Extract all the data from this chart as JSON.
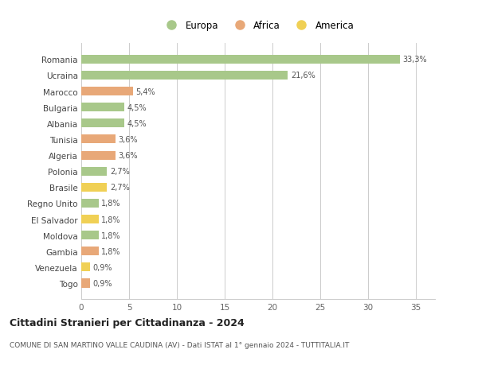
{
  "categories": [
    "Romania",
    "Ucraina",
    "Marocco",
    "Bulgaria",
    "Albania",
    "Tunisia",
    "Algeria",
    "Polonia",
    "Brasile",
    "Regno Unito",
    "El Salvador",
    "Moldova",
    "Gambia",
    "Venezuela",
    "Togo"
  ],
  "values": [
    33.3,
    21.6,
    5.4,
    4.5,
    4.5,
    3.6,
    3.6,
    2.7,
    2.7,
    1.8,
    1.8,
    1.8,
    1.8,
    0.9,
    0.9
  ],
  "continents": [
    "Europa",
    "Europa",
    "Africa",
    "Europa",
    "Europa",
    "Africa",
    "Africa",
    "Europa",
    "America",
    "Europa",
    "America",
    "Europa",
    "Africa",
    "America",
    "Africa"
  ],
  "labels": [
    "33,3%",
    "21,6%",
    "5,4%",
    "4,5%",
    "4,5%",
    "3,6%",
    "3,6%",
    "2,7%",
    "2,7%",
    "1,8%",
    "1,8%",
    "1,8%",
    "1,8%",
    "0,9%",
    "0,9%"
  ],
  "color_europa": "#a8c88a",
  "color_africa": "#e8a878",
  "color_america": "#f0d055",
  "background_color": "#ffffff",
  "grid_color": "#cccccc",
  "title": "Cittadini Stranieri per Cittadinanza - 2024",
  "subtitle": "COMUNE DI SAN MARTINO VALLE CAUDINA (AV) - Dati ISTAT al 1° gennaio 2024 - TUTTITALIA.IT",
  "xlim": [
    0,
    37
  ],
  "xticks": [
    0,
    5,
    10,
    15,
    20,
    25,
    30,
    35
  ]
}
